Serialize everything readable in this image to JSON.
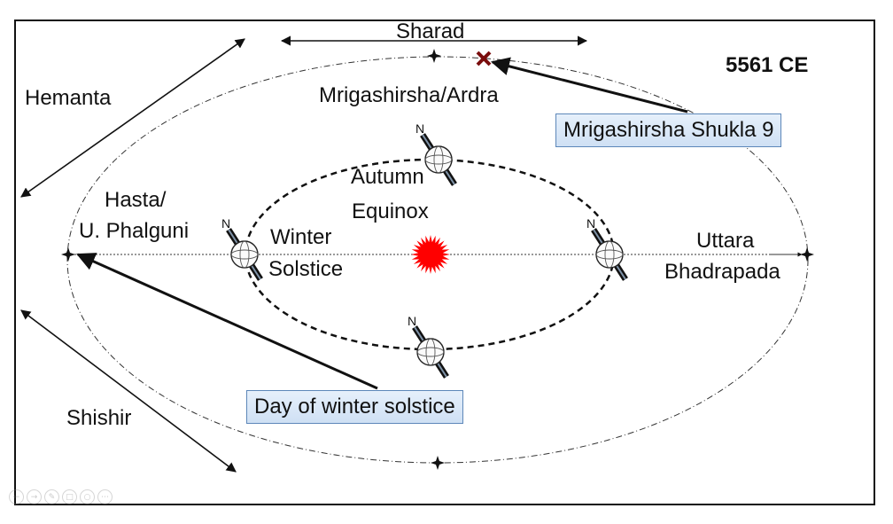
{
  "year": "5561 CE",
  "seasons": {
    "sharad": "Sharad",
    "hemanta": "Hemanta",
    "shishir": "Shishir"
  },
  "nakshatras": {
    "top": "Mrigashirsha/Ardra",
    "left_line1": "Hasta/",
    "left_line2": "U. Phalguni",
    "right_line1": "Uttara",
    "right_line2": "Bhadrapada"
  },
  "events": {
    "autumn_line1": "Autumn",
    "autumn_line2": "Equinox",
    "winter_line1": "Winter",
    "winter_line2": "Solstice"
  },
  "callouts": {
    "mrigashirsha": "Mrigashirsha Shukla 9",
    "winter_day": "Day of winter solstice"
  },
  "pole_label": "N",
  "colors": {
    "sun": "#ff0000",
    "marker_x": "#7a0d0d",
    "callout_border": "#5d87b9",
    "callout_fill": "#dbe8f7"
  },
  "toolbar_icons": [
    "back-icon",
    "forward-icon",
    "pen-icon",
    "slides-icon",
    "zoom-icon",
    "more-icon"
  ]
}
